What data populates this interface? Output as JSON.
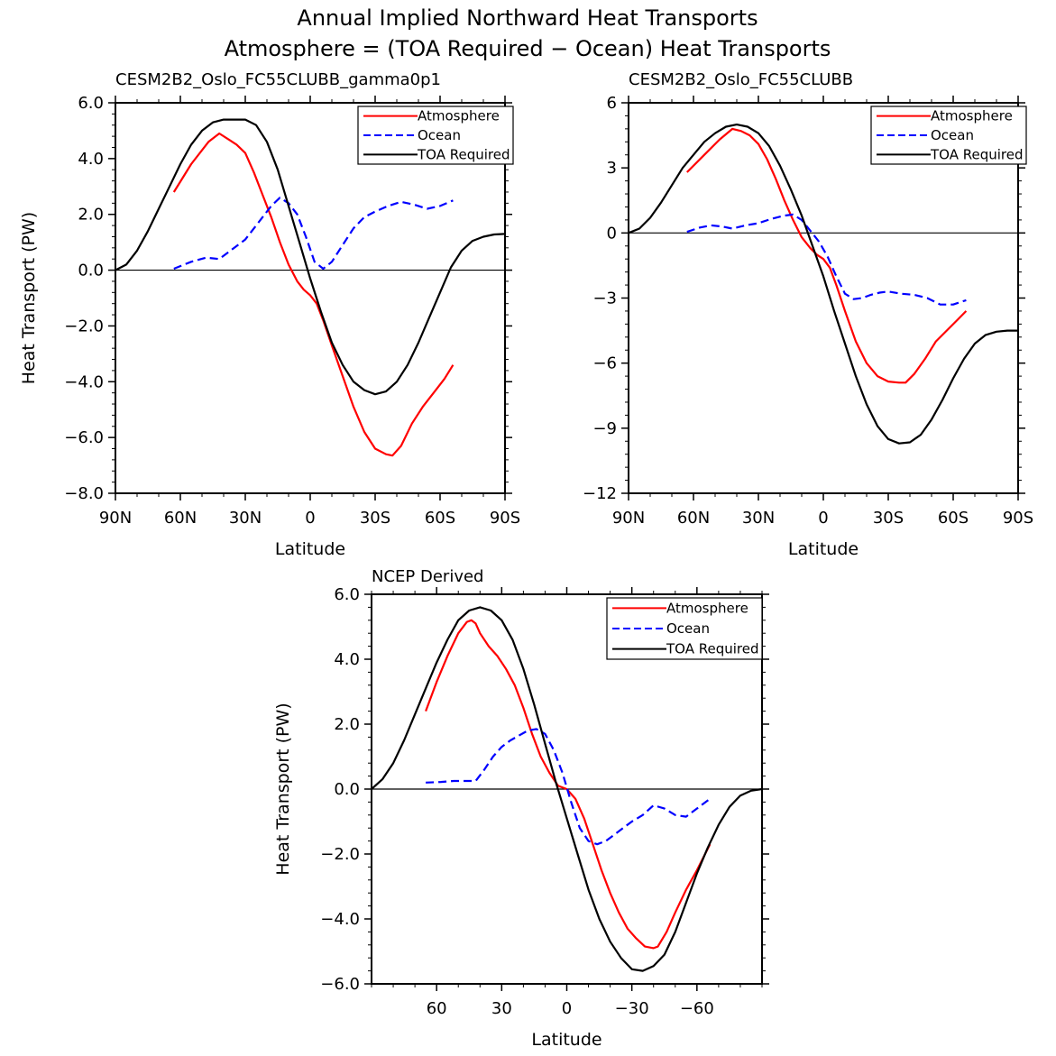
{
  "figure": {
    "title_line1": "Annual Implied Northward Heat Transports",
    "title_line2": "Atmosphere = (TOA Required − Ocean) Heat Transports"
  },
  "chart_data": [
    {
      "type": "line",
      "title": "CESM2B2_Oslo_FC55CLUBB_gamma0p1",
      "xlabel": "Latitude",
      "ylabel": "Heat Transport (PW)",
      "xlim": [
        90,
        -90
      ],
      "ylim": [
        -8,
        6
      ],
      "xticks": [
        90,
        60,
        30,
        0,
        -30,
        -60,
        -90
      ],
      "xtick_labels": [
        "90N",
        "60N",
        "30N",
        "0",
        "30S",
        "60S",
        "90S"
      ],
      "yticks": [
        6,
        4,
        2,
        0,
        -2,
        -4,
        -6,
        -8
      ],
      "ytick_labels": [
        "6.0",
        "4.0",
        "2.0",
        "0.0",
        "−2.0",
        "−4.0",
        "−6.0",
        "−8.0"
      ],
      "legend": "top-right",
      "series": [
        {
          "name": "Atmosphere",
          "color": "#ff0000",
          "dash": "solid",
          "x": [
            63,
            55,
            47,
            42,
            38,
            34,
            30,
            26,
            22,
            18,
            14,
            10,
            6,
            3,
            0,
            -3,
            -6,
            -10,
            -15,
            -20,
            -25,
            -30,
            -35,
            -38,
            -42,
            -47,
            -52,
            -57,
            -62,
            -66
          ],
          "y": [
            2.8,
            3.8,
            4.6,
            4.9,
            4.7,
            4.5,
            4.2,
            3.5,
            2.7,
            1.9,
            1.0,
            0.2,
            -0.4,
            -0.7,
            -0.9,
            -1.2,
            -1.8,
            -2.7,
            -3.8,
            -4.9,
            -5.8,
            -6.4,
            -6.6,
            -6.65,
            -6.3,
            -5.5,
            -4.9,
            -4.4,
            -3.9,
            -3.4
          ]
        },
        {
          "name": "Ocean",
          "color": "#0000ff",
          "dash": "dashed",
          "x": [
            63,
            55,
            48,
            42,
            36,
            30,
            24,
            18,
            14,
            10,
            6,
            2,
            -2,
            -6,
            -10,
            -15,
            -20,
            -25,
            -30,
            -36,
            -42,
            -48,
            -54,
            -60,
            -66
          ],
          "y": [
            0.05,
            0.3,
            0.45,
            0.4,
            0.75,
            1.1,
            1.7,
            2.3,
            2.6,
            2.4,
            2.0,
            1.2,
            0.3,
            0.05,
            0.3,
            0.9,
            1.5,
            1.9,
            2.1,
            2.3,
            2.45,
            2.35,
            2.2,
            2.3,
            2.5
          ]
        },
        {
          "name": "TOA Required",
          "color": "#000000",
          "dash": "solid",
          "x": [
            90,
            85,
            80,
            75,
            70,
            65,
            60,
            55,
            50,
            45,
            40,
            35,
            30,
            25,
            20,
            15,
            10,
            5,
            0,
            -5,
            -10,
            -15,
            -20,
            -25,
            -30,
            -35,
            -40,
            -45,
            -50,
            -55,
            -60,
            -65,
            -70,
            -75,
            -80,
            -85,
            -90
          ],
          "y": [
            0.0,
            0.2,
            0.7,
            1.4,
            2.2,
            3.0,
            3.8,
            4.5,
            5.0,
            5.3,
            5.4,
            5.4,
            5.4,
            5.2,
            4.6,
            3.6,
            2.3,
            1.0,
            -0.3,
            -1.5,
            -2.6,
            -3.4,
            -4.0,
            -4.3,
            -4.45,
            -4.35,
            -4.0,
            -3.4,
            -2.6,
            -1.7,
            -0.8,
            0.1,
            0.7,
            1.05,
            1.2,
            1.28,
            1.3
          ]
        }
      ]
    },
    {
      "type": "line",
      "title": "CESM2B2_Oslo_FC55CLUBB",
      "xlabel": "Latitude",
      "ylabel": "",
      "xlim": [
        90,
        -90
      ],
      "ylim": [
        -12,
        6
      ],
      "xticks": [
        90,
        60,
        30,
        0,
        -30,
        -60,
        -90
      ],
      "xtick_labels": [
        "90N",
        "60N",
        "30N",
        "0",
        "30S",
        "60S",
        "90S"
      ],
      "yticks": [
        6,
        3,
        0,
        -3,
        -6,
        -9,
        -12
      ],
      "ytick_labels": [
        "6",
        "3",
        "0",
        "−3",
        "−6",
        "−9",
        "−12"
      ],
      "legend": "top-right",
      "series": [
        {
          "name": "Atmosphere",
          "color": "#ff0000",
          "dash": "solid",
          "x": [
            63,
            55,
            48,
            42,
            38,
            34,
            30,
            26,
            22,
            18,
            14,
            10,
            6,
            3,
            0,
            -3,
            -6,
            -10,
            -15,
            -20,
            -25,
            -30,
            -35,
            -38,
            -42,
            -47,
            -52,
            -57,
            -62,
            -66
          ],
          "y": [
            2.8,
            3.6,
            4.3,
            4.8,
            4.7,
            4.5,
            4.1,
            3.4,
            2.5,
            1.5,
            0.6,
            -0.2,
            -0.7,
            -1.0,
            -1.2,
            -1.6,
            -2.4,
            -3.6,
            -5.0,
            -6.0,
            -6.6,
            -6.85,
            -6.9,
            -6.9,
            -6.5,
            -5.8,
            -5.0,
            -4.5,
            -4.0,
            -3.6
          ]
        },
        {
          "name": "Ocean",
          "color": "#0000ff",
          "dash": "dashed",
          "x": [
            63,
            57,
            52,
            47,
            42,
            36,
            30,
            24,
            18,
            14,
            10,
            6,
            2,
            -2,
            -6,
            -10,
            -14,
            -18,
            -22,
            -26,
            -30,
            -36,
            -42,
            -48,
            -54,
            -60,
            -66
          ],
          "y": [
            0.05,
            0.25,
            0.35,
            0.3,
            0.2,
            0.35,
            0.45,
            0.65,
            0.8,
            0.85,
            0.6,
            0.1,
            -0.4,
            -1.1,
            -2.0,
            -2.8,
            -3.05,
            -3.0,
            -2.85,
            -2.75,
            -2.7,
            -2.8,
            -2.85,
            -3.0,
            -3.3,
            -3.3,
            -3.1
          ]
        },
        {
          "name": "TOA Required",
          "color": "#000000",
          "dash": "solid",
          "x": [
            90,
            85,
            80,
            75,
            70,
            65,
            60,
            55,
            50,
            45,
            40,
            35,
            30,
            25,
            20,
            15,
            10,
            5,
            0,
            -5,
            -10,
            -15,
            -20,
            -25,
            -30,
            -35,
            -40,
            -45,
            -50,
            -55,
            -60,
            -65,
            -70,
            -75,
            -80,
            -85,
            -90
          ],
          "y": [
            0.0,
            0.2,
            0.7,
            1.4,
            2.2,
            3.0,
            3.6,
            4.2,
            4.6,
            4.9,
            5.0,
            4.9,
            4.6,
            4.0,
            3.1,
            2.0,
            0.8,
            -0.6,
            -2.0,
            -3.6,
            -5.1,
            -6.6,
            -7.9,
            -8.9,
            -9.5,
            -9.7,
            -9.65,
            -9.3,
            -8.6,
            -7.7,
            -6.7,
            -5.8,
            -5.1,
            -4.7,
            -4.55,
            -4.5,
            -4.5
          ]
        }
      ]
    },
    {
      "type": "line",
      "title": "NCEP Derived",
      "xlabel": "Latitude",
      "ylabel": "Heat Transport (PW)",
      "xlim": [
        90,
        -90
      ],
      "ylim": [
        -6,
        6
      ],
      "xticks": [
        60,
        30,
        0,
        -30,
        -60
      ],
      "xtick_labels": [
        "60",
        "30",
        "0",
        "−30",
        "−60"
      ],
      "yticks": [
        6,
        4,
        2,
        0,
        -2,
        -4,
        -6
      ],
      "ytick_labels": [
        "6.0",
        "4.0",
        "2.0",
        "0.0",
        "−2.0",
        "−4.0",
        "−6.0"
      ],
      "legend": "top-right",
      "series": [
        {
          "name": "Atmosphere",
          "color": "#ff0000",
          "dash": "solid",
          "x": [
            65,
            60,
            55,
            50,
            46,
            44,
            42,
            40,
            36,
            32,
            28,
            24,
            20,
            16,
            12,
            8,
            4,
            0,
            -4,
            -8,
            -12,
            -16,
            -20,
            -24,
            -28,
            -32,
            -36,
            -40,
            -42,
            -46,
            -50,
            -55,
            -60,
            -66
          ],
          "y": [
            2.4,
            3.3,
            4.1,
            4.8,
            5.15,
            5.2,
            5.1,
            4.8,
            4.4,
            4.1,
            3.7,
            3.2,
            2.5,
            1.7,
            1.0,
            0.5,
            0.1,
            0.0,
            -0.3,
            -0.9,
            -1.7,
            -2.5,
            -3.2,
            -3.8,
            -4.3,
            -4.6,
            -4.85,
            -4.9,
            -4.85,
            -4.4,
            -3.8,
            -3.1,
            -2.5,
            -1.7
          ]
        },
        {
          "name": "Ocean",
          "color": "#0000ff",
          "dash": "dashed",
          "x": [
            65,
            58,
            52,
            46,
            42,
            38,
            34,
            30,
            26,
            22,
            18,
            14,
            10,
            6,
            2,
            -2,
            -6,
            -10,
            -14,
            -18,
            -22,
            -26,
            -30,
            -35,
            -40,
            -45,
            -50,
            -55,
            -60,
            -66
          ],
          "y": [
            0.2,
            0.22,
            0.25,
            0.25,
            0.25,
            0.6,
            1.0,
            1.3,
            1.5,
            1.65,
            1.8,
            1.85,
            1.7,
            1.2,
            0.5,
            -0.4,
            -1.2,
            -1.6,
            -1.7,
            -1.6,
            -1.4,
            -1.2,
            -1.0,
            -0.8,
            -0.5,
            -0.6,
            -0.8,
            -0.85,
            -0.6,
            -0.3
          ]
        },
        {
          "name": "TOA Required",
          "color": "#000000",
          "dash": "solid",
          "x": [
            90,
            85,
            80,
            75,
            70,
            65,
            60,
            55,
            50,
            45,
            40,
            35,
            30,
            25,
            20,
            15,
            10,
            5,
            0,
            -5,
            -10,
            -15,
            -20,
            -25,
            -30,
            -35,
            -40,
            -45,
            -50,
            -55,
            -60,
            -65,
            -70,
            -75,
            -80,
            -85,
            -90
          ],
          "y": [
            0.0,
            0.3,
            0.8,
            1.5,
            2.3,
            3.1,
            3.9,
            4.6,
            5.2,
            5.5,
            5.6,
            5.5,
            5.2,
            4.6,
            3.7,
            2.6,
            1.4,
            0.2,
            -0.9,
            -2.0,
            -3.1,
            -4.0,
            -4.7,
            -5.2,
            -5.55,
            -5.6,
            -5.45,
            -5.1,
            -4.4,
            -3.5,
            -2.6,
            -1.8,
            -1.1,
            -0.55,
            -0.2,
            -0.05,
            0.0
          ]
        }
      ]
    }
  ]
}
